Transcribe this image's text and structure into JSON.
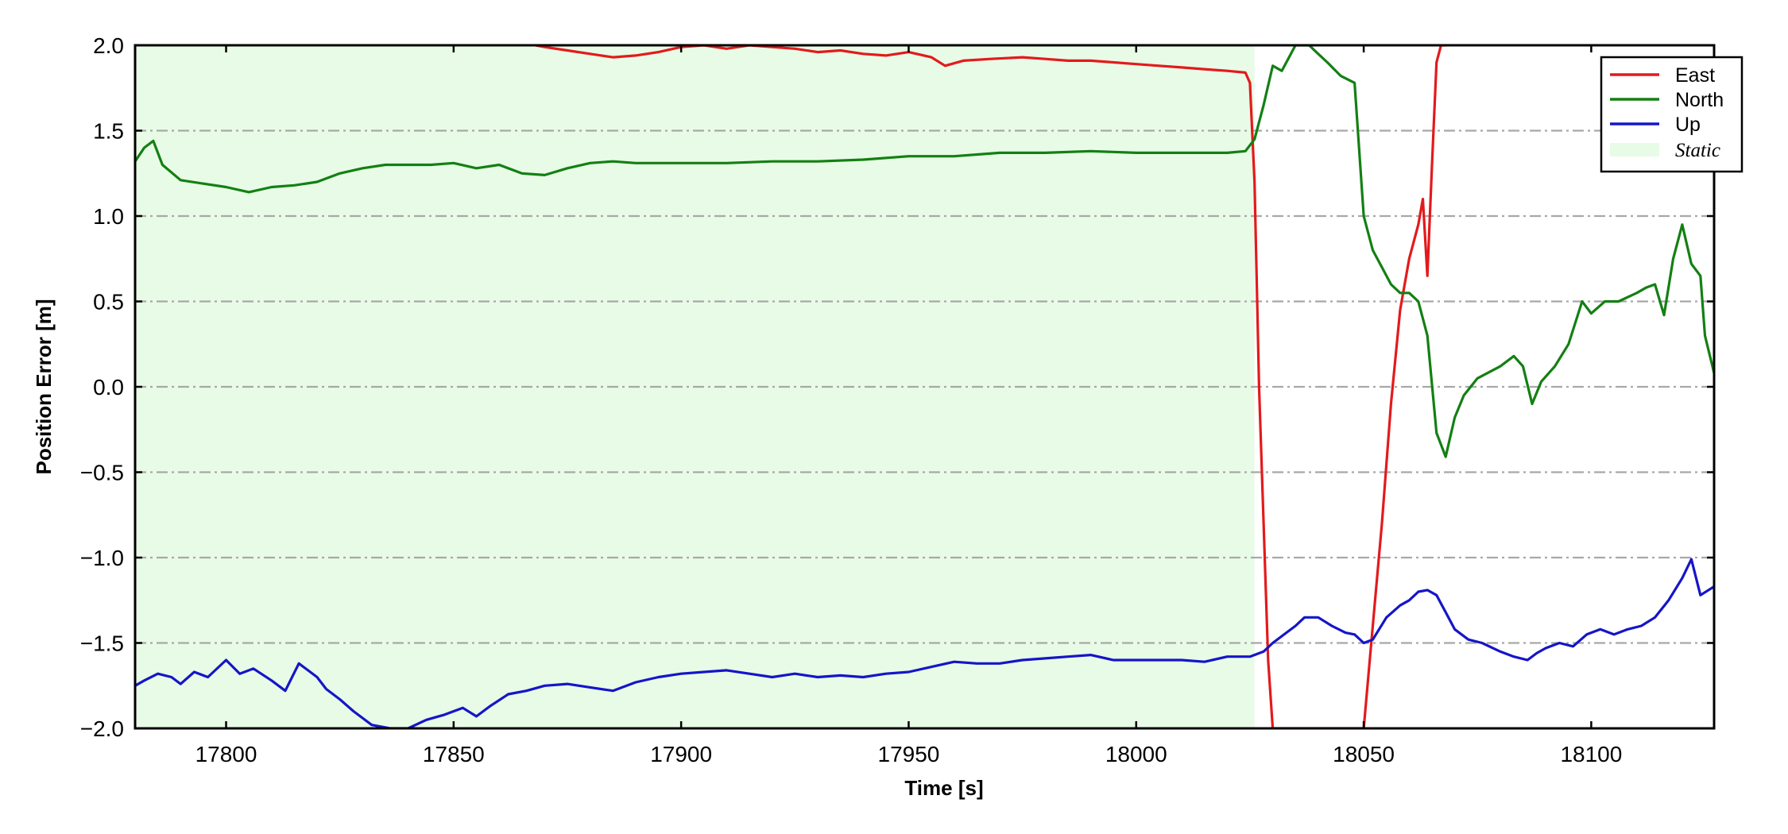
{
  "chart_data": {
    "type": "line",
    "title": "",
    "xlabel": "Time [s]",
    "ylabel": "Position Error [m]",
    "xlim": [
      17780,
      18127
    ],
    "ylim": [
      -2.0,
      2.0
    ],
    "xticks": [
      17800,
      17850,
      17900,
      17950,
      18000,
      18050,
      18100
    ],
    "yticks": [
      -2.0,
      -1.5,
      -1.0,
      -0.5,
      0.0,
      0.5,
      1.0,
      1.5,
      2.0
    ],
    "xtick_labels": [
      "17800",
      "17850",
      "17900",
      "17950",
      "18000",
      "18050",
      "18100"
    ],
    "ytick_labels": [
      "−2.0",
      "−1.5",
      "−1.0",
      "−0.5",
      "0.0",
      "0.5",
      "1.0",
      "1.5",
      "2.0"
    ],
    "grid": "horizontal dash-dot",
    "legend_position": "top-right",
    "static_region": {
      "name": "Static",
      "x_start": 17780,
      "x_end": 18026,
      "color": "#e8fbe6"
    },
    "series": [
      {
        "name": "East",
        "color": "#e31a1c",
        "x": [
          17868,
          17870,
          17875,
          17880,
          17885,
          17890,
          17895,
          17900,
          17905,
          17910,
          17915,
          17920,
          17925,
          17930,
          17935,
          17940,
          17945,
          17950,
          17955,
          17958,
          17962,
          17968,
          17975,
          17980,
          17985,
          17990,
          17995,
          18000,
          18005,
          18010,
          18015,
          18020,
          18024,
          18025,
          18026,
          18027,
          18029,
          18030,
          18050,
          18052,
          18054,
          18056,
          18058,
          18060,
          18062,
          18063,
          18064,
          18065,
          18066,
          18067,
          18068
        ],
        "values": [
          2.0,
          1.99,
          1.97,
          1.95,
          1.93,
          1.94,
          1.96,
          1.99,
          2.0,
          1.98,
          2.0,
          1.99,
          1.98,
          1.96,
          1.97,
          1.95,
          1.94,
          1.96,
          1.93,
          1.88,
          1.91,
          1.92,
          1.93,
          1.92,
          1.91,
          1.91,
          1.9,
          1.89,
          1.88,
          1.87,
          1.86,
          1.85,
          1.84,
          1.78,
          1.2,
          0.0,
          -1.6,
          -2.0,
          -2.0,
          -1.4,
          -0.8,
          -0.1,
          0.45,
          0.75,
          0.95,
          1.1,
          0.65,
          1.3,
          1.9,
          2.0,
          2.0
        ]
      },
      {
        "name": "North",
        "color": "#138013",
        "x": [
          17780,
          17782,
          17784,
          17786,
          17790,
          17795,
          17800,
          17805,
          17810,
          17815,
          17820,
          17825,
          17830,
          17835,
          17840,
          17845,
          17850,
          17855,
          17860,
          17865,
          17870,
          17875,
          17880,
          17885,
          17890,
          17900,
          17910,
          17920,
          17930,
          17940,
          17950,
          17960,
          17970,
          17980,
          17990,
          18000,
          18010,
          18020,
          18024,
          18026,
          18028,
          18030,
          18032,
          18035,
          18038,
          18040,
          18042,
          18045,
          18048,
          18050,
          18052,
          18054,
          18056,
          18058,
          18060,
          18062,
          18064,
          18066,
          18068,
          18070,
          18072,
          18075,
          18080,
          18083,
          18085,
          18087,
          18089,
          18092,
          18095,
          18098,
          18100,
          18103,
          18106,
          18110,
          18112,
          18114,
          18116,
          18118,
          18120,
          18122,
          18124,
          18125,
          18127
        ],
        "values": [
          1.32,
          1.4,
          1.44,
          1.3,
          1.21,
          1.19,
          1.17,
          1.14,
          1.17,
          1.18,
          1.2,
          1.25,
          1.28,
          1.3,
          1.3,
          1.3,
          1.31,
          1.28,
          1.3,
          1.25,
          1.24,
          1.28,
          1.31,
          1.32,
          1.31,
          1.31,
          1.31,
          1.32,
          1.32,
          1.33,
          1.35,
          1.35,
          1.37,
          1.37,
          1.38,
          1.37,
          1.37,
          1.37,
          1.38,
          1.45,
          1.65,
          1.88,
          1.85,
          2.0,
          2.0,
          1.95,
          1.9,
          1.82,
          1.78,
          1.0,
          0.8,
          0.7,
          0.6,
          0.55,
          0.55,
          0.5,
          0.3,
          -0.27,
          -0.41,
          -0.18,
          -0.05,
          0.05,
          0.12,
          0.18,
          0.12,
          -0.1,
          0.03,
          0.12,
          0.25,
          0.5,
          0.43,
          0.5,
          0.5,
          0.55,
          0.58,
          0.6,
          0.42,
          0.75,
          0.95,
          0.72,
          0.65,
          0.3,
          0.08
        ]
      },
      {
        "name": "Up",
        "color": "#1515c8",
        "x": [
          17780,
          17782,
          17785,
          17788,
          17790,
          17793,
          17796,
          17800,
          17803,
          17806,
          17810,
          17813,
          17816,
          17818,
          17820,
          17822,
          17825,
          17828,
          17832,
          17836,
          17838,
          17840,
          17844,
          17848,
          17852,
          17855,
          17858,
          17862,
          17866,
          17870,
          17875,
          17880,
          17885,
          17890,
          17895,
          17900,
          17905,
          17910,
          17915,
          17920,
          17925,
          17930,
          17935,
          17940,
          17945,
          17950,
          17955,
          17960,
          17965,
          17970,
          17975,
          17980,
          17985,
          17990,
          17995,
          18000,
          18005,
          18010,
          18015,
          18020,
          18025,
          18028,
          18030,
          18033,
          18035,
          18037,
          18040,
          18043,
          18046,
          18048,
          18050,
          18052,
          18055,
          18058,
          18060,
          18062,
          18064,
          18066,
          18068,
          18070,
          18073,
          18076,
          18080,
          18083,
          18086,
          18088,
          18090,
          18093,
          18096,
          18099,
          18102,
          18105,
          18108,
          18111,
          18114,
          18117,
          18120,
          18122,
          18124,
          18127
        ],
        "values": [
          -1.75,
          -1.72,
          -1.68,
          -1.7,
          -1.74,
          -1.67,
          -1.7,
          -1.6,
          -1.68,
          -1.65,
          -1.72,
          -1.78,
          -1.62,
          -1.66,
          -1.7,
          -1.77,
          -1.83,
          -1.9,
          -1.98,
          -2.0,
          -2.0,
          -2.0,
          -1.95,
          -1.92,
          -1.88,
          -1.93,
          -1.87,
          -1.8,
          -1.78,
          -1.75,
          -1.74,
          -1.76,
          -1.78,
          -1.73,
          -1.7,
          -1.68,
          -1.67,
          -1.66,
          -1.68,
          -1.7,
          -1.68,
          -1.7,
          -1.69,
          -1.7,
          -1.68,
          -1.67,
          -1.64,
          -1.61,
          -1.62,
          -1.62,
          -1.6,
          -1.59,
          -1.58,
          -1.57,
          -1.6,
          -1.6,
          -1.6,
          -1.6,
          -1.61,
          -1.58,
          -1.58,
          -1.55,
          -1.5,
          -1.44,
          -1.4,
          -1.35,
          -1.35,
          -1.4,
          -1.44,
          -1.45,
          -1.5,
          -1.48,
          -1.35,
          -1.28,
          -1.25,
          -1.2,
          -1.19,
          -1.22,
          -1.32,
          -1.42,
          -1.48,
          -1.5,
          -1.55,
          -1.58,
          -1.6,
          -1.56,
          -1.53,
          -1.5,
          -1.52,
          -1.45,
          -1.42,
          -1.45,
          -1.42,
          -1.4,
          -1.35,
          -1.25,
          -1.12,
          -1.01,
          -1.22,
          -1.17
        ]
      }
    ]
  }
}
